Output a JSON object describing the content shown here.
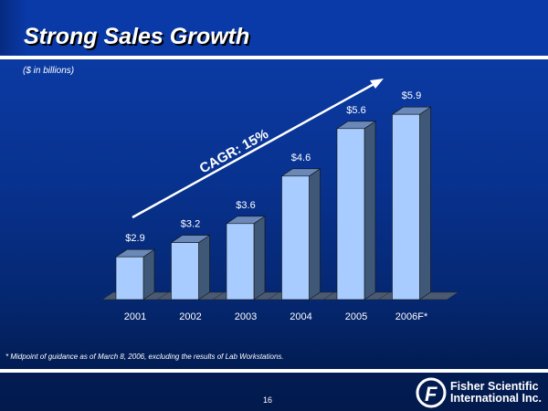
{
  "title": "Strong Sales Growth",
  "subtitle": "($ in billions)",
  "footnote": "* Midpoint of guidance as of March 8, 2006, excluding the results of Lab Workstations.",
  "page_number": "16",
  "logo": {
    "line1": "Fisher Scientific",
    "line2": "International Inc."
  },
  "chart_data": {
    "type": "bar",
    "categories": [
      "2001",
      "2002",
      "2003",
      "2004",
      "2005",
      "2006F*"
    ],
    "values": [
      2.9,
      3.2,
      3.6,
      4.6,
      5.6,
      5.9
    ],
    "labels": [
      "$2.9",
      "$3.2",
      "$3.6",
      "$4.6",
      "$5.6",
      "$5.9"
    ],
    "annotation": "CAGR: 15%",
    "style": "3d",
    "grid": false,
    "colors": {
      "bar": "#a8ccff",
      "bar_side": "#3f5878",
      "bar_top": "#6a88b8",
      "floor": "#4a5a72"
    }
  }
}
